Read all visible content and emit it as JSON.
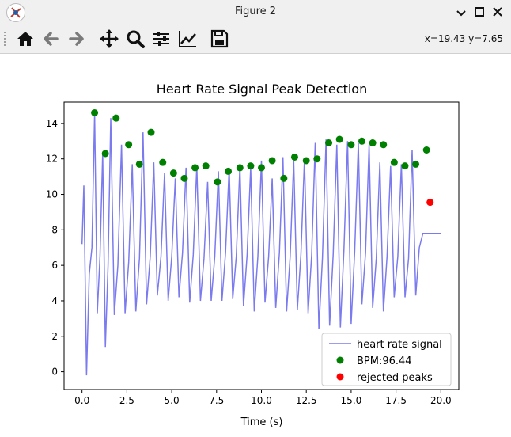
{
  "window": {
    "title": "Figure 2"
  },
  "toolbar": {
    "coords": "x=19.43 y=7.65"
  },
  "chart_data": {
    "type": "line",
    "title": "Heart Rate Signal Peak Detection",
    "xlabel": "Time (s)",
    "ylabel": "",
    "xlim": [
      -1.0,
      21.0
    ],
    "ylim": [
      -1.0,
      15.2
    ],
    "xticks": [
      "0.0",
      "2.5",
      "5.0",
      "7.5",
      "10.0",
      "12.5",
      "15.0",
      "17.5",
      "20.0"
    ],
    "yticks": [
      "0",
      "2",
      "4",
      "6",
      "8",
      "10",
      "12",
      "14"
    ],
    "grid": false,
    "legend_position": "lower-right",
    "series": [
      {
        "name": "heart rate signal",
        "type": "line",
        "color": "#7b7bef",
        "x": [
          0.0,
          0.1,
          0.25,
          0.4,
          0.55,
          0.7,
          0.85,
          1.0,
          1.15,
          1.3,
          1.45,
          1.6,
          1.8,
          2.0,
          2.2,
          2.4,
          2.6,
          2.8,
          3.0,
          3.2,
          3.4,
          3.6,
          3.8,
          4.0,
          4.2,
          4.4,
          4.6,
          4.8,
          5.0,
          5.2,
          5.4,
          5.6,
          5.8,
          6.0,
          6.2,
          6.4,
          6.6,
          6.8,
          7.0,
          7.2,
          7.4,
          7.6,
          7.8,
          8.0,
          8.2,
          8.4,
          8.6,
          8.8,
          9.0,
          9.2,
          9.4,
          9.6,
          9.8,
          10.0,
          10.2,
          10.4,
          10.6,
          10.8,
          11.0,
          11.2,
          11.4,
          11.6,
          11.8,
          12.0,
          12.2,
          12.4,
          12.6,
          12.8,
          13.0,
          13.2,
          13.4,
          13.6,
          13.8,
          14.0,
          14.2,
          14.4,
          14.6,
          14.8,
          15.0,
          15.2,
          15.4,
          15.6,
          15.8,
          16.0,
          16.2,
          16.4,
          16.6,
          16.8,
          17.0,
          17.2,
          17.4,
          17.6,
          17.8,
          18.0,
          18.2,
          18.4,
          18.6,
          18.8,
          19.0,
          19.2,
          19.4,
          19.6,
          19.8,
          20.0
        ],
        "y": [
          7.2,
          10.5,
          -0.2,
          5.5,
          7.0,
          14.6,
          3.3,
          6.5,
          12.3,
          1.4,
          6.0,
          14.3,
          3.2,
          6.0,
          12.8,
          3.3,
          6.2,
          11.7,
          3.4,
          6.4,
          13.5,
          3.8,
          6.5,
          11.8,
          4.3,
          6.5,
          11.2,
          4.0,
          6.5,
          10.9,
          4.2,
          6.7,
          11.5,
          3.9,
          6.6,
          11.6,
          4.0,
          6.4,
          10.7,
          4.0,
          6.5,
          11.3,
          4.0,
          6.7,
          11.5,
          4.1,
          6.5,
          11.6,
          3.7,
          6.6,
          11.5,
          3.4,
          6.5,
          11.9,
          3.9,
          6.5,
          10.9,
          3.6,
          6.7,
          12.1,
          3.4,
          6.5,
          11.9,
          3.5,
          6.6,
          12.0,
          3.3,
          6.6,
          12.9,
          2.4,
          6.4,
          13.1,
          2.6,
          6.6,
          12.8,
          2.5,
          6.9,
          13.0,
          2.7,
          6.8,
          12.9,
          3.8,
          6.7,
          12.8,
          3.6,
          6.4,
          11.8,
          3.4,
          6.5,
          11.6,
          4.2,
          6.5,
          11.7,
          4.2,
          6.4,
          12.5,
          4.3,
          7.0,
          7.8,
          7.8,
          7.8,
          7.8,
          7.8,
          7.8
        ]
      },
      {
        "name": "BPM:96.44",
        "type": "scatter",
        "color": "#008000",
        "x": [
          0.7,
          1.3,
          1.9,
          2.6,
          3.2,
          3.85,
          4.5,
          5.1,
          5.7,
          6.3,
          6.9,
          7.55,
          8.15,
          8.8,
          9.4,
          10.0,
          10.6,
          11.25,
          11.85,
          12.5,
          13.1,
          13.75,
          14.35,
          15.0,
          15.6,
          16.2,
          16.8,
          17.4,
          18.0,
          18.6,
          19.2
        ],
        "y": [
          14.6,
          12.3,
          14.3,
          12.8,
          11.7,
          13.5,
          11.8,
          11.2,
          10.9,
          11.5,
          11.6,
          10.7,
          11.3,
          11.5,
          11.6,
          11.5,
          11.9,
          10.9,
          12.1,
          11.9,
          12.0,
          12.9,
          13.1,
          12.8,
          13.0,
          12.9,
          12.8,
          11.8,
          11.6,
          11.7,
          12.5
        ]
      },
      {
        "name": "rejected peaks",
        "type": "scatter",
        "color": "#ff0000",
        "x": [
          19.4
        ],
        "y": [
          9.55
        ]
      }
    ]
  }
}
